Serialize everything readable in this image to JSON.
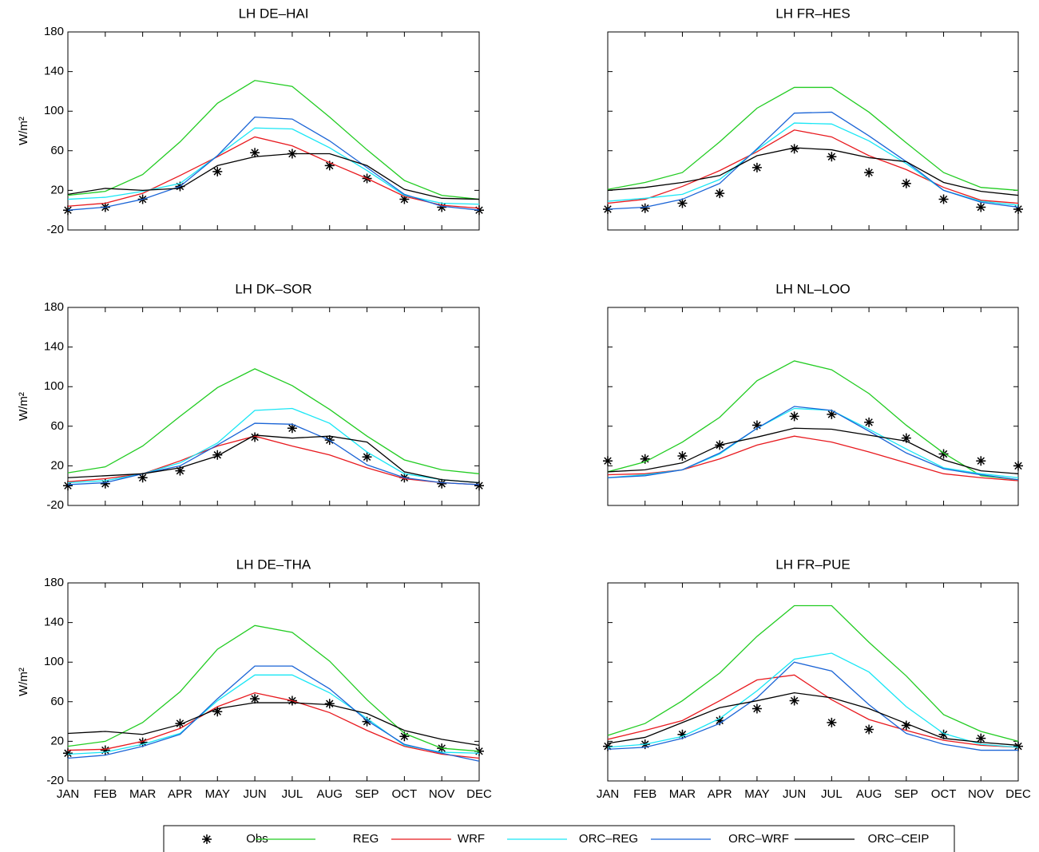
{
  "chart_data": [
    {
      "type": "line",
      "title": "LH  DE–HAI",
      "ylabel": "W/m²",
      "ylim": [
        -20,
        180
      ],
      "yticks": [
        -20,
        20,
        60,
        100,
        140,
        180
      ],
      "show_xticklabels": false,
      "show_yticklabels": true,
      "categories": [
        "JAN",
        "FEB",
        "MAR",
        "APR",
        "MAY",
        "JUN",
        "JUL",
        "AUG",
        "SEP",
        "OCT",
        "NOV",
        "DEC"
      ],
      "series": [
        {
          "name": "Obs",
          "color": "#000000",
          "marker": "*",
          "values": [
            0,
            3,
            11,
            24,
            39,
            58,
            57,
            45,
            32,
            11,
            3,
            0
          ]
        },
        {
          "name": "REG",
          "color": "#22cc22",
          "values": [
            15,
            19,
            36,
            69,
            108,
            131,
            125,
            94,
            61,
            30,
            15,
            11
          ]
        },
        {
          "name": "WRF",
          "color": "#e8191e",
          "values": [
            4,
            7,
            17,
            35,
            54,
            74,
            65,
            48,
            32,
            14,
            5,
            2
          ]
        },
        {
          "name": "ORC–REG",
          "color": "#19e6f5",
          "values": [
            11,
            13,
            19,
            27,
            55,
            83,
            82,
            63,
            40,
            15,
            7,
            6
          ]
        },
        {
          "name": "ORC–WRF",
          "color": "#1a64d6",
          "values": [
            0,
            3,
            11,
            24,
            55,
            94,
            92,
            70,
            43,
            16,
            4,
            0
          ]
        },
        {
          "name": "ORC–CEIP",
          "color": "#000000",
          "values": [
            16,
            22,
            20,
            22,
            45,
            54,
            57,
            57,
            45,
            21,
            12,
            11
          ]
        }
      ]
    },
    {
      "type": "line",
      "title": "LH  FR–HES",
      "ylim": [
        -20,
        180
      ],
      "yticks": [
        -20,
        20,
        60,
        100,
        140,
        180
      ],
      "show_xticklabels": false,
      "show_yticklabels": false,
      "categories": [
        "JAN",
        "FEB",
        "MAR",
        "APR",
        "MAY",
        "JUN",
        "JUL",
        "AUG",
        "SEP",
        "OCT",
        "NOV",
        "DEC"
      ],
      "series": [
        {
          "name": "Obs",
          "color": "#000000",
          "marker": "*",
          "values": [
            1,
            2,
            7,
            17,
            43,
            62,
            54,
            38,
            27,
            11,
            3,
            1
          ]
        },
        {
          "name": "REG",
          "color": "#22cc22",
          "values": [
            21,
            28,
            38,
            69,
            103,
            124,
            124,
            99,
            68,
            38,
            23,
            20
          ]
        },
        {
          "name": "WRF",
          "color": "#e8191e",
          "values": [
            7,
            11,
            24,
            40,
            59,
            81,
            74,
            55,
            41,
            23,
            10,
            7
          ]
        },
        {
          "name": "ORC–REG",
          "color": "#19e6f5",
          "values": [
            9,
            12,
            16,
            31,
            61,
            88,
            87,
            70,
            47,
            20,
            9,
            5
          ]
        },
        {
          "name": "ORC–WRF",
          "color": "#1a64d6",
          "values": [
            1,
            3,
            11,
            27,
            62,
            98,
            99,
            75,
            49,
            20,
            8,
            3
          ]
        },
        {
          "name": "ORC–CEIP",
          "color": "#000000",
          "values": [
            20,
            23,
            28,
            35,
            55,
            63,
            61,
            53,
            49,
            28,
            19,
            15
          ]
        }
      ]
    },
    {
      "type": "line",
      "title": "LH  DK–SOR",
      "ylabel": "W/m²",
      "ylim": [
        -20,
        180
      ],
      "yticks": [
        -20,
        20,
        60,
        100,
        140,
        180
      ],
      "show_xticklabels": false,
      "show_yticklabels": true,
      "categories": [
        "JAN",
        "FEB",
        "MAR",
        "APR",
        "MAY",
        "JUN",
        "JUL",
        "AUG",
        "SEP",
        "OCT",
        "NOV",
        "DEC"
      ],
      "series": [
        {
          "name": "Obs",
          "color": "#000000",
          "marker": "*",
          "values": [
            0,
            2,
            8,
            15,
            31,
            49,
            58,
            46,
            29,
            8,
            2,
            0
          ]
        },
        {
          "name": "REG",
          "color": "#22cc22",
          "values": [
            13,
            19,
            40,
            70,
            99,
            118,
            101,
            77,
            50,
            26,
            16,
            12
          ]
        },
        {
          "name": "WRF",
          "color": "#e8191e",
          "values": [
            4,
            7,
            12,
            25,
            40,
            50,
            40,
            31,
            18,
            7,
            3,
            1
          ]
        },
        {
          "name": "ORC–REG",
          "color": "#19e6f5",
          "values": [
            3,
            5,
            12,
            23,
            43,
            76,
            78,
            63,
            34,
            12,
            6,
            3
          ]
        },
        {
          "name": "ORC–WRF",
          "color": "#1a64d6",
          "values": [
            1,
            3,
            12,
            20,
            41,
            63,
            62,
            46,
            21,
            8,
            3,
            1
          ]
        },
        {
          "name": "ORC–CEIP",
          "color": "#000000",
          "values": [
            8,
            10,
            12,
            18,
            30,
            51,
            48,
            50,
            44,
            14,
            6,
            3
          ]
        }
      ]
    },
    {
      "type": "line",
      "title": "LH  NL–LOO",
      "ylim": [
        -20,
        180
      ],
      "yticks": [
        -20,
        20,
        60,
        100,
        140,
        180
      ],
      "show_xticklabels": false,
      "show_yticklabels": false,
      "categories": [
        "JAN",
        "FEB",
        "MAR",
        "APR",
        "MAY",
        "JUN",
        "JUL",
        "AUG",
        "SEP",
        "OCT",
        "NOV",
        "DEC"
      ],
      "series": [
        {
          "name": "Obs",
          "color": "#000000",
          "marker": "*",
          "values": [
            25,
            27,
            30,
            41,
            61,
            70,
            72,
            64,
            48,
            32,
            25,
            20
          ]
        },
        {
          "name": "REG",
          "color": "#22cc22",
          "values": [
            14,
            24,
            44,
            69,
            106,
            126,
            117,
            93,
            61,
            33,
            10,
            6
          ]
        },
        {
          "name": "WRF",
          "color": "#e8191e",
          "values": [
            11,
            12,
            16,
            27,
            41,
            50,
            44,
            34,
            23,
            12,
            8,
            5
          ]
        },
        {
          "name": "ORC–REG",
          "color": "#19e6f5",
          "values": [
            8,
            11,
            16,
            32,
            58,
            78,
            76,
            57,
            37,
            18,
            12,
            8
          ]
        },
        {
          "name": "ORC–WRF",
          "color": "#1a64d6",
          "values": [
            8,
            10,
            16,
            33,
            58,
            80,
            76,
            55,
            33,
            17,
            11,
            6
          ]
        },
        {
          "name": "ORC–CEIP",
          "color": "#000000",
          "values": [
            14,
            16,
            23,
            41,
            49,
            58,
            57,
            51,
            45,
            26,
            15,
            12
          ]
        }
      ]
    },
    {
      "type": "line",
      "title": "LH  DE–THA",
      "ylabel": "W/m²",
      "ylim": [
        -20,
        180
      ],
      "yticks": [
        -20,
        20,
        60,
        100,
        140,
        180
      ],
      "show_xticklabels": true,
      "show_yticklabels": true,
      "categories": [
        "JAN",
        "FEB",
        "MAR",
        "APR",
        "MAY",
        "JUN",
        "JUL",
        "AUG",
        "SEP",
        "OCT",
        "NOV",
        "DEC"
      ],
      "series": [
        {
          "name": "Obs",
          "color": "#000000",
          "marker": "*",
          "values": [
            8,
            11,
            19,
            38,
            50,
            63,
            61,
            58,
            40,
            25,
            13,
            10
          ]
        },
        {
          "name": "REG",
          "color": "#22cc22",
          "values": [
            15,
            20,
            39,
            70,
            113,
            137,
            130,
            101,
            62,
            28,
            13,
            10
          ]
        },
        {
          "name": "WRF",
          "color": "#e8191e",
          "values": [
            11,
            12,
            20,
            33,
            55,
            69,
            61,
            49,
            31,
            15,
            7,
            3
          ]
        },
        {
          "name": "ORC–REG",
          "color": "#19e6f5",
          "values": [
            7,
            9,
            17,
            28,
            61,
            87,
            87,
            69,
            43,
            16,
            9,
            8
          ]
        },
        {
          "name": "ORC–WRF",
          "color": "#1a64d6",
          "values": [
            3,
            6,
            15,
            27,
            63,
            96,
            96,
            73,
            41,
            17,
            8,
            0
          ]
        },
        {
          "name": "ORC–CEIP",
          "color": "#000000",
          "values": [
            28,
            30,
            27,
            37,
            53,
            59,
            59,
            57,
            48,
            31,
            22,
            16
          ]
        }
      ]
    },
    {
      "type": "line",
      "title": "LH  FR–PUE",
      "ylim": [
        -20,
        180
      ],
      "yticks": [
        -20,
        20,
        60,
        100,
        140,
        180
      ],
      "show_xticklabels": true,
      "show_yticklabels": false,
      "categories": [
        "JAN",
        "FEB",
        "MAR",
        "APR",
        "MAY",
        "JUN",
        "JUL",
        "AUG",
        "SEP",
        "OCT",
        "NOV",
        "DEC"
      ],
      "series": [
        {
          "name": "Obs",
          "color": "#000000",
          "marker": "*",
          "values": [
            15,
            17,
            27,
            41,
            53,
            61,
            39,
            32,
            36,
            27,
            23,
            15
          ]
        },
        {
          "name": "REG",
          "color": "#22cc22",
          "values": [
            26,
            38,
            61,
            89,
            126,
            157,
            157,
            120,
            86,
            47,
            30,
            20
          ]
        },
        {
          "name": "WRF",
          "color": "#e8191e",
          "values": [
            22,
            31,
            41,
            61,
            82,
            87,
            62,
            42,
            31,
            21,
            16,
            14
          ]
        },
        {
          "name": "ORC–REG",
          "color": "#19e6f5",
          "values": [
            14,
            17,
            25,
            43,
            71,
            103,
            109,
            90,
            55,
            28,
            17,
            14
          ]
        },
        {
          "name": "ORC–WRF",
          "color": "#1a64d6",
          "values": [
            12,
            14,
            23,
            38,
            64,
            100,
            91,
            57,
            28,
            17,
            11,
            11
          ]
        },
        {
          "name": "ORC–CEIP",
          "color": "#000000",
          "values": [
            18,
            24,
            39,
            54,
            61,
            69,
            64,
            53,
            38,
            23,
            19,
            16
          ]
        }
      ]
    }
  ]
}
